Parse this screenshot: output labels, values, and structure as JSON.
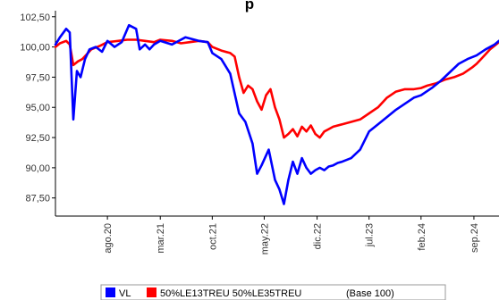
{
  "chart_data": {
    "type": "line",
    "title": "p",
    "y_ticks": [
      "102,50",
      "100,00",
      "97,50",
      "95,00",
      "92,50",
      "90,00",
      "87,50"
    ],
    "y_tick_values": [
      102.5,
      100,
      97.5,
      95,
      92.5,
      90,
      87.5
    ],
    "ylim": [
      86.0,
      103.0
    ],
    "x_ticks": [
      "ago.20",
      "mar.21",
      "oct.21",
      "may.22",
      "dic.22",
      "jul.23",
      "feb.24",
      "sep.24"
    ],
    "x_tick_values": [
      2020.58,
      2021.17,
      2021.75,
      2022.33,
      2022.92,
      2023.5,
      2024.08,
      2024.67
    ],
    "xlim": [
      2020.0,
      2024.95
    ],
    "grid": false,
    "legend_position": "bottom",
    "legend_note": "(Base 100)",
    "series": [
      {
        "name": "VL",
        "color": "#0000ff",
        "x": [
          2020.0,
          2020.05,
          2020.12,
          2020.16,
          2020.2,
          2020.22,
          2020.24,
          2020.28,
          2020.33,
          2020.38,
          2020.45,
          2020.52,
          2020.58,
          2020.66,
          2020.74,
          2020.82,
          2020.9,
          2020.94,
          2021.0,
          2021.05,
          2021.1,
          2021.17,
          2021.3,
          2021.45,
          2021.6,
          2021.7,
          2021.75,
          2021.85,
          2021.95,
          2022.05,
          2022.12,
          2022.2,
          2022.25,
          2022.3,
          2022.38,
          2022.45,
          2022.5,
          2022.55,
          2022.6,
          2022.65,
          2022.7,
          2022.75,
          2022.8,
          2022.85,
          2022.9,
          2022.95,
          2023.0,
          2023.05,
          2023.1,
          2023.15,
          2023.2,
          2023.3,
          2023.4,
          2023.5,
          2023.6,
          2023.7,
          2023.8,
          2023.9,
          2024.0,
          2024.08,
          2024.2,
          2024.3,
          2024.4,
          2024.5,
          2024.6,
          2024.7,
          2024.8,
          2024.9,
          2024.95
        ],
        "values": [
          100.2,
          100.8,
          101.5,
          101.2,
          94.0,
          96.0,
          98.0,
          97.5,
          99.0,
          99.8,
          100.0,
          99.6,
          100.5,
          100.0,
          100.4,
          101.8,
          101.5,
          99.8,
          100.2,
          99.8,
          100.2,
          100.5,
          100.2,
          100.8,
          100.5,
          100.4,
          99.5,
          99.0,
          97.8,
          94.5,
          93.8,
          92.0,
          89.5,
          90.2,
          91.5,
          89.0,
          88.2,
          87.0,
          89.0,
          90.5,
          89.5,
          90.8,
          90.0,
          89.5,
          89.8,
          90.0,
          89.8,
          90.1,
          90.2,
          90.4,
          90.5,
          90.8,
          91.5,
          93.0,
          93.6,
          94.2,
          94.8,
          95.3,
          95.8,
          96.0,
          96.6,
          97.2,
          97.9,
          98.6,
          99.0,
          99.3,
          99.8,
          100.2,
          100.5
        ]
      },
      {
        "name": "50%LE13TREU 50%LE35TREU",
        "color": "#ff0000",
        "x": [
          2020.0,
          2020.05,
          2020.12,
          2020.16,
          2020.2,
          2020.25,
          2020.3,
          2020.35,
          2020.4,
          2020.5,
          2020.58,
          2020.7,
          2020.8,
          2020.9,
          2021.0,
          2021.1,
          2021.17,
          2021.3,
          2021.4,
          2021.5,
          2021.6,
          2021.7,
          2021.75,
          2021.85,
          2021.95,
          2022.0,
          2022.05,
          2022.1,
          2022.15,
          2022.2,
          2022.25,
          2022.3,
          2022.35,
          2022.4,
          2022.45,
          2022.5,
          2022.55,
          2022.6,
          2022.65,
          2022.7,
          2022.75,
          2022.8,
          2022.85,
          2022.9,
          2022.95,
          2023.0,
          2023.05,
          2023.1,
          2023.2,
          2023.3,
          2023.4,
          2023.5,
          2023.6,
          2023.7,
          2023.8,
          2023.9,
          2024.0,
          2024.08,
          2024.15,
          2024.25,
          2024.35,
          2024.45,
          2024.55,
          2024.65,
          2024.7,
          2024.75,
          2024.8,
          2024.85,
          2024.9,
          2024.95
        ],
        "values": [
          100.0,
          100.3,
          100.5,
          100.2,
          98.5,
          98.8,
          99.0,
          99.4,
          99.8,
          100.1,
          100.4,
          100.5,
          100.6,
          100.6,
          100.5,
          100.4,
          100.6,
          100.5,
          100.3,
          100.4,
          100.5,
          100.4,
          100.0,
          99.7,
          99.5,
          99.2,
          97.5,
          96.2,
          96.8,
          96.5,
          95.5,
          94.8,
          96.0,
          96.5,
          95.0,
          94.0,
          92.5,
          92.8,
          93.2,
          92.6,
          93.4,
          93.0,
          93.5,
          92.8,
          92.5,
          93.0,
          93.2,
          93.4,
          93.6,
          93.8,
          94.0,
          94.5,
          95.0,
          95.8,
          96.3,
          96.5,
          96.5,
          96.6,
          96.8,
          97.0,
          97.3,
          97.5,
          97.8,
          98.3,
          98.6,
          99.0,
          99.4,
          99.8,
          100.1,
          100.4
        ]
      }
    ]
  }
}
